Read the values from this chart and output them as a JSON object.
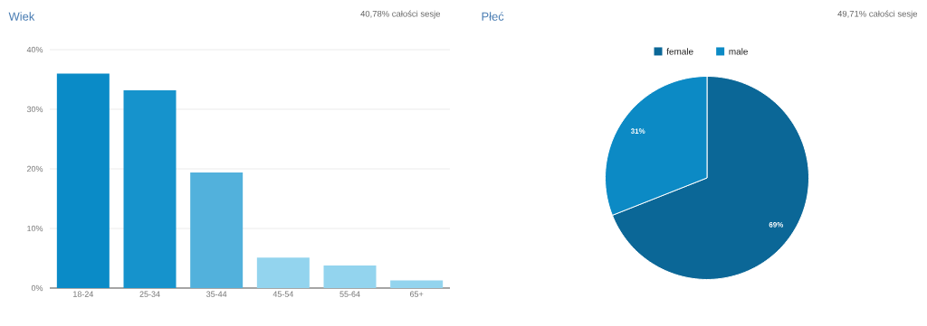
{
  "chart_data": [
    {
      "type": "bar",
      "title": "Wiek",
      "subtitle": "40,78% całości sesje",
      "categories": [
        "18-24",
        "25-34",
        "35-44",
        "45-54",
        "55-64",
        "65+"
      ],
      "values": [
        36.0,
        33.2,
        19.4,
        5.1,
        3.8,
        1.3
      ],
      "colors": [
        "#0a8bc7",
        "#1693cc",
        "#52b1dc",
        "#93d4ee",
        "#93d4ee",
        "#93d4ee"
      ],
      "ylim": [
        0,
        40
      ],
      "yticks": [
        {
          "value": 0,
          "label": "0%"
        },
        {
          "value": 10,
          "label": "10%"
        },
        {
          "value": 20,
          "label": "20%"
        },
        {
          "value": 30,
          "label": "30%"
        },
        {
          "value": 40,
          "label": "40%"
        }
      ],
      "grid": "y"
    },
    {
      "type": "pie",
      "title": "Płeć",
      "subtitle": "49,71% całości sesje",
      "categories": [
        "female",
        "male"
      ],
      "values": [
        69,
        31
      ],
      "colors": [
        "#0b6797",
        "#0c8ac5"
      ],
      "value_labels": [
        "69%",
        "31%"
      ],
      "legend": "top"
    }
  ]
}
